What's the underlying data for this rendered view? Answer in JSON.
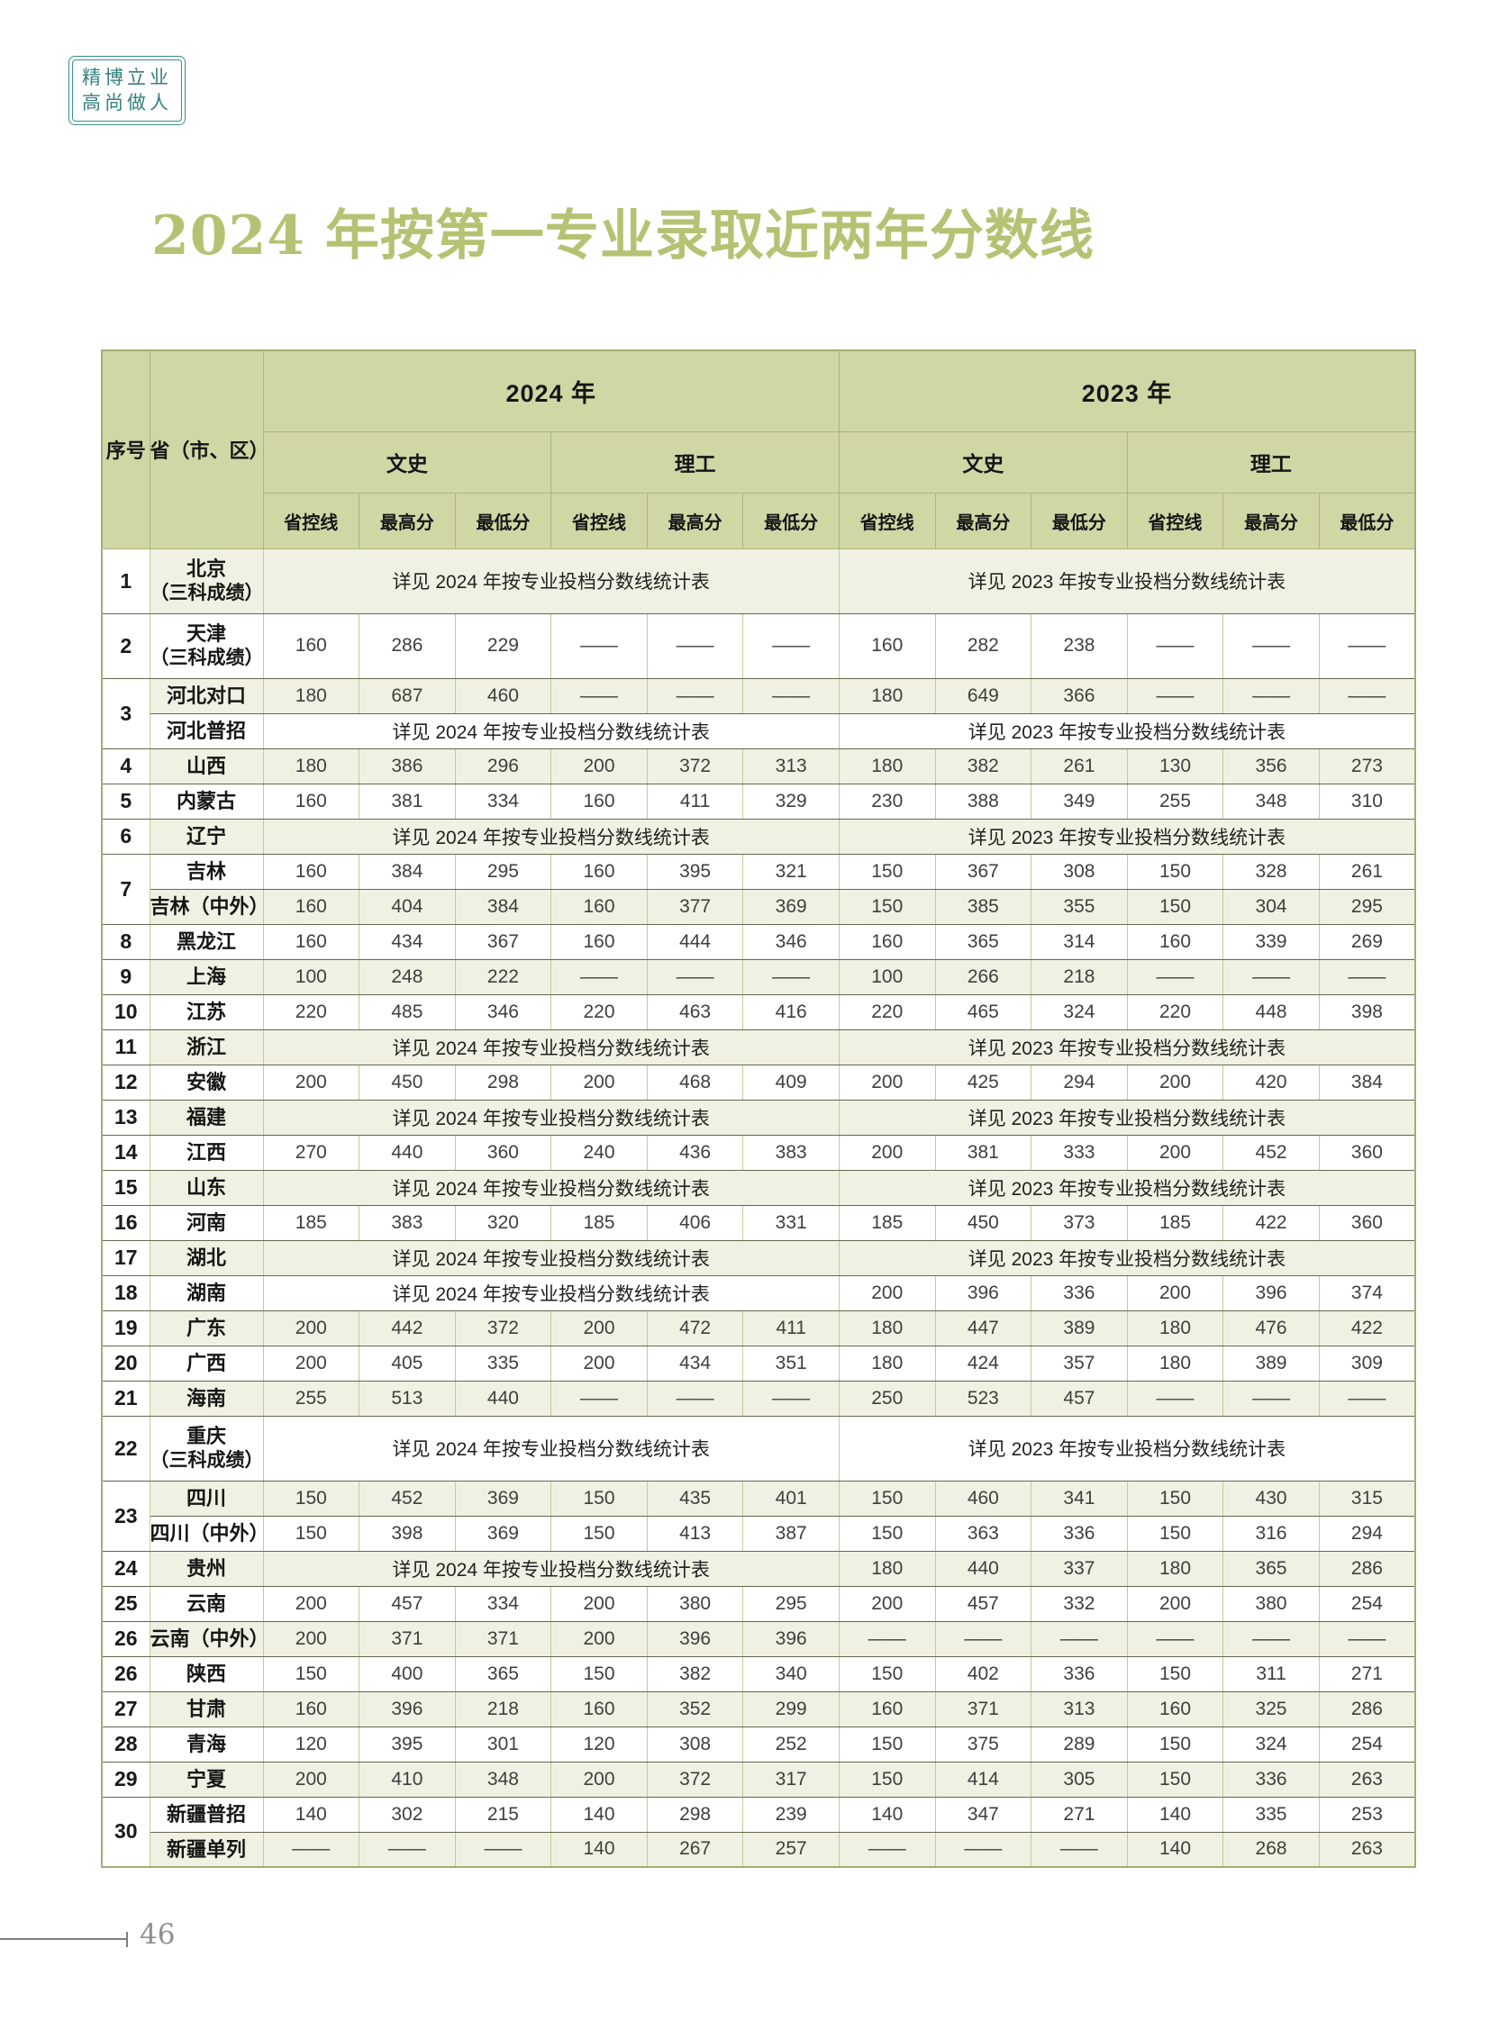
{
  "badge": {
    "line1": "精博立业",
    "line2": "高尚做人",
    "color": "#35807d"
  },
  "title": {
    "text": "2024 年按第一专业录取近两年分数线",
    "color": "#b6c273"
  },
  "table": {
    "header": {
      "no": "序号",
      "province": "省（市、区）",
      "year2024": "2024 年",
      "year2023": "2023 年",
      "wenshi": "文史",
      "ligong": "理工",
      "cols": [
        "省控线",
        "最高分",
        "最低分"
      ]
    },
    "see2024": "详见 2024 年按专业投档分数线统计表",
    "see2023": "详见 2023 年按专业投档分数线统计表",
    "rows": [
      {
        "no": "1",
        "name": "北京",
        "sub": "（三科成绩）",
        "tall": true,
        "tint": true,
        "y2024": {
          "span": "详见 2024 年按专业投档分数线统计表"
        },
        "y2023": {
          "span": "详见 2023 年按专业投档分数线统计表"
        }
      },
      {
        "no": "2",
        "name": "天津",
        "sub": "（三科成绩）",
        "tall": true,
        "tint": false,
        "y2024": {
          "vals": [
            "160",
            "286",
            "229",
            "——",
            "——",
            "——"
          ]
        },
        "y2023": {
          "vals": [
            "160",
            "282",
            "238",
            "——",
            "——",
            "——"
          ]
        }
      },
      {
        "no": "3",
        "rs": 2,
        "name": "河北对口",
        "tint": true,
        "y2024": {
          "vals": [
            "180",
            "687",
            "460",
            "——",
            "——",
            "——"
          ]
        },
        "y2023": {
          "vals": [
            "180",
            "649",
            "366",
            "——",
            "——",
            "——"
          ]
        }
      },
      {
        "name": "河北普招",
        "tint": false,
        "y2024": {
          "span": "详见 2024 年按专业投档分数线统计表"
        },
        "y2023": {
          "span": "详见 2023 年按专业投档分数线统计表"
        }
      },
      {
        "no": "4",
        "name": "山西",
        "tint": true,
        "y2024": {
          "vals": [
            "180",
            "386",
            "296",
            "200",
            "372",
            "313"
          ]
        },
        "y2023": {
          "vals": [
            "180",
            "382",
            "261",
            "130",
            "356",
            "273"
          ]
        }
      },
      {
        "no": "5",
        "name": "内蒙古",
        "tint": false,
        "y2024": {
          "vals": [
            "160",
            "381",
            "334",
            "160",
            "411",
            "329"
          ]
        },
        "y2023": {
          "vals": [
            "230",
            "388",
            "349",
            "255",
            "348",
            "310"
          ]
        }
      },
      {
        "no": "6",
        "name": "辽宁",
        "tint": true,
        "y2024": {
          "span": "详见 2024 年按专业投档分数线统计表"
        },
        "y2023": {
          "span": "详见 2023 年按专业投档分数线统计表"
        }
      },
      {
        "no": "7",
        "rs": 2,
        "name": "吉林",
        "tint": false,
        "y2024": {
          "vals": [
            "160",
            "384",
            "295",
            "160",
            "395",
            "321"
          ]
        },
        "y2023": {
          "vals": [
            "150",
            "367",
            "308",
            "150",
            "328",
            "261"
          ]
        }
      },
      {
        "name": "吉林（中外）",
        "tint": true,
        "y2024": {
          "vals": [
            "160",
            "404",
            "384",
            "160",
            "377",
            "369"
          ]
        },
        "y2023": {
          "vals": [
            "150",
            "385",
            "355",
            "150",
            "304",
            "295"
          ]
        }
      },
      {
        "no": "8",
        "name": "黑龙江",
        "tint": false,
        "y2024": {
          "vals": [
            "160",
            "434",
            "367",
            "160",
            "444",
            "346"
          ]
        },
        "y2023": {
          "vals": [
            "160",
            "365",
            "314",
            "160",
            "339",
            "269"
          ]
        }
      },
      {
        "no": "9",
        "name": "上海",
        "tint": true,
        "y2024": {
          "vals": [
            "100",
            "248",
            "222",
            "——",
            "——",
            "——"
          ]
        },
        "y2023": {
          "vals": [
            "100",
            "266",
            "218",
            "——",
            "——",
            "——"
          ]
        }
      },
      {
        "no": "10",
        "name": "江苏",
        "tint": false,
        "y2024": {
          "vals": [
            "220",
            "485",
            "346",
            "220",
            "463",
            "416"
          ]
        },
        "y2023": {
          "vals": [
            "220",
            "465",
            "324",
            "220",
            "448",
            "398"
          ]
        }
      },
      {
        "no": "11",
        "name": "浙江",
        "tint": true,
        "y2024": {
          "span": "详见 2024 年按专业投档分数线统计表"
        },
        "y2023": {
          "span": "详见 2023 年按专业投档分数线统计表"
        }
      },
      {
        "no": "12",
        "name": "安徽",
        "tint": false,
        "y2024": {
          "vals": [
            "200",
            "450",
            "298",
            "200",
            "468",
            "409"
          ]
        },
        "y2023": {
          "vals": [
            "200",
            "425",
            "294",
            "200",
            "420",
            "384"
          ]
        }
      },
      {
        "no": "13",
        "name": "福建",
        "tint": true,
        "y2024": {
          "span": "详见 2024 年按专业投档分数线统计表"
        },
        "y2023": {
          "span": "详见 2023 年按专业投档分数线统计表"
        }
      },
      {
        "no": "14",
        "name": "江西",
        "tint": false,
        "y2024": {
          "vals": [
            "270",
            "440",
            "360",
            "240",
            "436",
            "383"
          ]
        },
        "y2023": {
          "vals": [
            "200",
            "381",
            "333",
            "200",
            "452",
            "360"
          ]
        }
      },
      {
        "no": "15",
        "name": "山东",
        "tint": true,
        "y2024": {
          "span": "详见 2024 年按专业投档分数线统计表"
        },
        "y2023": {
          "span": "详见 2023 年按专业投档分数线统计表"
        }
      },
      {
        "no": "16",
        "name": "河南",
        "tint": false,
        "y2024": {
          "vals": [
            "185",
            "383",
            "320",
            "185",
            "406",
            "331"
          ]
        },
        "y2023": {
          "vals": [
            "185",
            "450",
            "373",
            "185",
            "422",
            "360"
          ]
        }
      },
      {
        "no": "17",
        "name": "湖北",
        "tint": true,
        "y2024": {
          "span": "详见 2024 年按专业投档分数线统计表"
        },
        "y2023": {
          "span": "详见 2023 年按专业投档分数线统计表"
        }
      },
      {
        "no": "18",
        "name": "湖南",
        "tint": false,
        "y2024": {
          "span": "详见 2024 年按专业投档分数线统计表"
        },
        "y2023": {
          "vals": [
            "200",
            "396",
            "336",
            "200",
            "396",
            "374"
          ]
        }
      },
      {
        "no": "19",
        "name": "广东",
        "tint": true,
        "y2024": {
          "vals": [
            "200",
            "442",
            "372",
            "200",
            "472",
            "411"
          ]
        },
        "y2023": {
          "vals": [
            "180",
            "447",
            "389",
            "180",
            "476",
            "422"
          ]
        }
      },
      {
        "no": "20",
        "name": "广西",
        "tint": false,
        "y2024": {
          "vals": [
            "200",
            "405",
            "335",
            "200",
            "434",
            "351"
          ]
        },
        "y2023": {
          "vals": [
            "180",
            "424",
            "357",
            "180",
            "389",
            "309"
          ]
        }
      },
      {
        "no": "21",
        "name": "海南",
        "tint": true,
        "y2024": {
          "vals": [
            "255",
            "513",
            "440",
            "——",
            "——",
            "——"
          ]
        },
        "y2023": {
          "vals": [
            "250",
            "523",
            "457",
            "——",
            "——",
            "——"
          ]
        }
      },
      {
        "no": "22",
        "name": "重庆",
        "sub": "（三科成绩）",
        "tall": true,
        "tint": false,
        "y2024": {
          "span": "详见 2024 年按专业投档分数线统计表"
        },
        "y2023": {
          "span": "详见 2023 年按专业投档分数线统计表"
        }
      },
      {
        "no": "23",
        "rs": 2,
        "name": "四川",
        "tint": true,
        "y2024": {
          "vals": [
            "150",
            "452",
            "369",
            "150",
            "435",
            "401"
          ]
        },
        "y2023": {
          "vals": [
            "150",
            "460",
            "341",
            "150",
            "430",
            "315"
          ]
        }
      },
      {
        "name": "四川（中外）",
        "tint": false,
        "y2024": {
          "vals": [
            "150",
            "398",
            "369",
            "150",
            "413",
            "387"
          ]
        },
        "y2023": {
          "vals": [
            "150",
            "363",
            "336",
            "150",
            "316",
            "294"
          ]
        }
      },
      {
        "no": "24",
        "name": "贵州",
        "tint": true,
        "y2024": {
          "span": "详见 2024 年按专业投档分数线统计表"
        },
        "y2023": {
          "vals": [
            "180",
            "440",
            "337",
            "180",
            "365",
            "286"
          ]
        }
      },
      {
        "no": "25",
        "name": "云南",
        "tint": false,
        "y2024": {
          "vals": [
            "200",
            "457",
            "334",
            "200",
            "380",
            "295"
          ]
        },
        "y2023": {
          "vals": [
            "200",
            "457",
            "332",
            "200",
            "380",
            "254"
          ]
        }
      },
      {
        "no": "26",
        "name": "云南（中外）",
        "tint": true,
        "y2024": {
          "vals": [
            "200",
            "371",
            "371",
            "200",
            "396",
            "396"
          ]
        },
        "y2023": {
          "vals": [
            "——",
            "——",
            "——",
            "——",
            "——",
            "——"
          ]
        }
      },
      {
        "no": "26",
        "name": "陕西",
        "tint": false,
        "y2024": {
          "vals": [
            "150",
            "400",
            "365",
            "150",
            "382",
            "340"
          ]
        },
        "y2023": {
          "vals": [
            "150",
            "402",
            "336",
            "150",
            "311",
            "271"
          ]
        }
      },
      {
        "no": "27",
        "name": "甘肃",
        "tint": true,
        "y2024": {
          "vals": [
            "160",
            "396",
            "218",
            "160",
            "352",
            "299"
          ]
        },
        "y2023": {
          "vals": [
            "160",
            "371",
            "313",
            "160",
            "325",
            "286"
          ]
        }
      },
      {
        "no": "28",
        "name": "青海",
        "tint": false,
        "y2024": {
          "vals": [
            "120",
            "395",
            "301",
            "120",
            "308",
            "252"
          ]
        },
        "y2023": {
          "vals": [
            "150",
            "375",
            "289",
            "150",
            "324",
            "254"
          ]
        }
      },
      {
        "no": "29",
        "name": "宁夏",
        "tint": true,
        "y2024": {
          "vals": [
            "200",
            "410",
            "348",
            "200",
            "372",
            "317"
          ]
        },
        "y2023": {
          "vals": [
            "150",
            "414",
            "305",
            "150",
            "336",
            "263"
          ]
        }
      },
      {
        "no": "30",
        "rs": 2,
        "name": "新疆普招",
        "tint": false,
        "y2024": {
          "vals": [
            "140",
            "302",
            "215",
            "140",
            "298",
            "239"
          ]
        },
        "y2023": {
          "vals": [
            "140",
            "347",
            "271",
            "140",
            "335",
            "253"
          ]
        }
      },
      {
        "name": "新疆单列",
        "tint": true,
        "y2024": {
          "vals": [
            "——",
            "——",
            "——",
            "140",
            "267",
            "257"
          ]
        },
        "y2023": {
          "vals": [
            "——",
            "——",
            "——",
            "140",
            "268",
            "263"
          ]
        }
      }
    ]
  },
  "footer": {
    "page_number": "46"
  }
}
